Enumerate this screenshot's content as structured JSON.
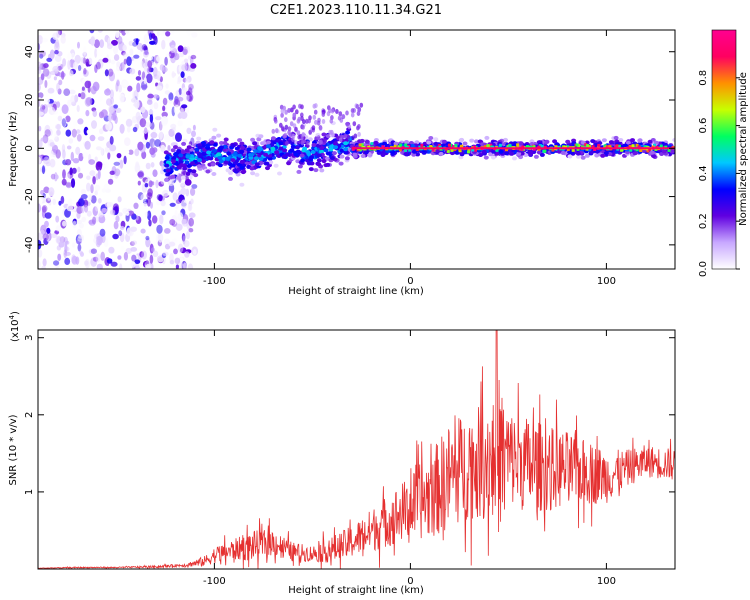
{
  "title": "C2E1.2023.110.11.34.G21",
  "colors": {
    "plot_bg": "#ffffff",
    "line": "#e53030",
    "axis": "#000000"
  },
  "chart_data": [
    {
      "type": "heatmap",
      "xlabel": "Height of straight line (km)",
      "ylabel": "Frequency (Hz)",
      "xlim": [
        -190,
        135
      ],
      "ylim": [
        -50,
        49
      ],
      "x_ticks": [
        -100,
        0,
        100
      ],
      "y_ticks": [
        -40,
        -20,
        0,
        20,
        40
      ],
      "x_tick_labels": [
        "-100",
        "0",
        "100"
      ],
      "y_tick_labels": [
        "-40",
        "-20",
        "0",
        "20",
        "40"
      ],
      "colorbar": {
        "label": "Normalized spectral amplitude",
        "range": [
          0,
          1
        ],
        "ticks": [
          0.0,
          0.2,
          0.4,
          0.6,
          0.8
        ],
        "tick_labels": [
          "0.0",
          "0.2",
          "0.4",
          "0.6",
          "0.8"
        ],
        "colormap": [
          "#ffffff",
          "#c8a8ff",
          "#6000e0",
          "#0000ff",
          "#00c8ff",
          "#00ff60",
          "#c8ff00",
          "#ff9000",
          "#ff0060",
          "#ff0090"
        ]
      },
      "regions": [
        {
          "description": "broadband noise",
          "x": [
            -190,
            -115
          ],
          "freq": [
            -50,
            49
          ],
          "amplitude": 0.15
        },
        {
          "description": "signal trace",
          "x": [
            -125,
            -30
          ],
          "freq_center": [
            -5,
            1
          ],
          "amplitude": 0.35
        },
        {
          "description": "locked signal",
          "x": [
            -30,
            135
          ],
          "freq_center": [
            0,
            0
          ],
          "amplitude": 0.85
        }
      ]
    },
    {
      "type": "line",
      "xlabel": "Height of straight line (km)",
      "ylabel": "SNR (10 * v/v)",
      "y_multiplier": "(x10",
      "y_multiplier_exp": "4",
      "y_multiplier_close": ")",
      "xlim": [
        -190,
        135
      ],
      "ylim": [
        0,
        3.1
      ],
      "x_ticks": [
        -100,
        0,
        100
      ],
      "y_ticks": [
        1,
        2,
        3
      ],
      "x_tick_labels": [
        "-100",
        "0",
        "100"
      ],
      "y_tick_labels": [
        "1",
        "2",
        "3"
      ],
      "series": [
        {
          "color": "#e53030",
          "x": [
            -190,
            -170,
            -150,
            -130,
            -115,
            -105,
            -100,
            -90,
            -80,
            -70,
            -60,
            -50,
            -40,
            -30,
            -20,
            -10,
            0,
            10,
            20,
            30,
            40,
            45,
            50,
            60,
            70,
            80,
            90,
            100,
            110,
            120,
            135
          ],
          "y": [
            0.01,
            0.02,
            0.02,
            0.03,
            0.05,
            0.1,
            0.18,
            0.25,
            0.3,
            0.35,
            0.22,
            0.2,
            0.25,
            0.35,
            0.5,
            0.65,
            0.8,
            0.95,
            1.2,
            1.35,
            1.4,
            1.5,
            1.45,
            1.35,
            1.3,
            1.3,
            1.25,
            1.2,
            1.3,
            1.4,
            1.35
          ],
          "noise_amplitude": [
            0.005,
            0.01,
            0.01,
            0.02,
            0.03,
            0.1,
            0.15,
            0.2,
            0.28,
            0.25,
            0.18,
            0.15,
            0.25,
            0.3,
            0.4,
            0.5,
            0.6,
            0.8,
            1.0,
            1.0,
            1.1,
            1.5,
            0.9,
            0.9,
            0.8,
            0.7,
            0.6,
            0.5,
            0.35,
            0.3,
            0.3
          ]
        }
      ]
    }
  ]
}
